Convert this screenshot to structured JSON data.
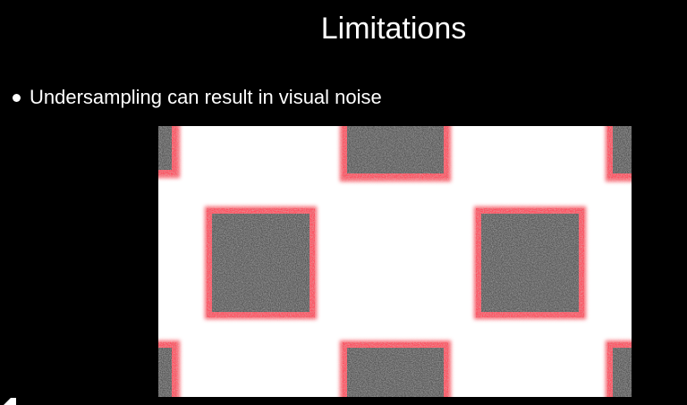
{
  "slide": {
    "title": "Limitations",
    "bullets": [
      {
        "text": "Undersampling can result in visual noise"
      }
    ]
  },
  "figure": {
    "description_icon": "noisy-squares-render",
    "background_color": "#ffffff",
    "square_color": "#5a5a5a",
    "edge_color": "#ff4d5e"
  },
  "colors": {
    "slide_background": "#000000",
    "text": "#ffffff"
  }
}
